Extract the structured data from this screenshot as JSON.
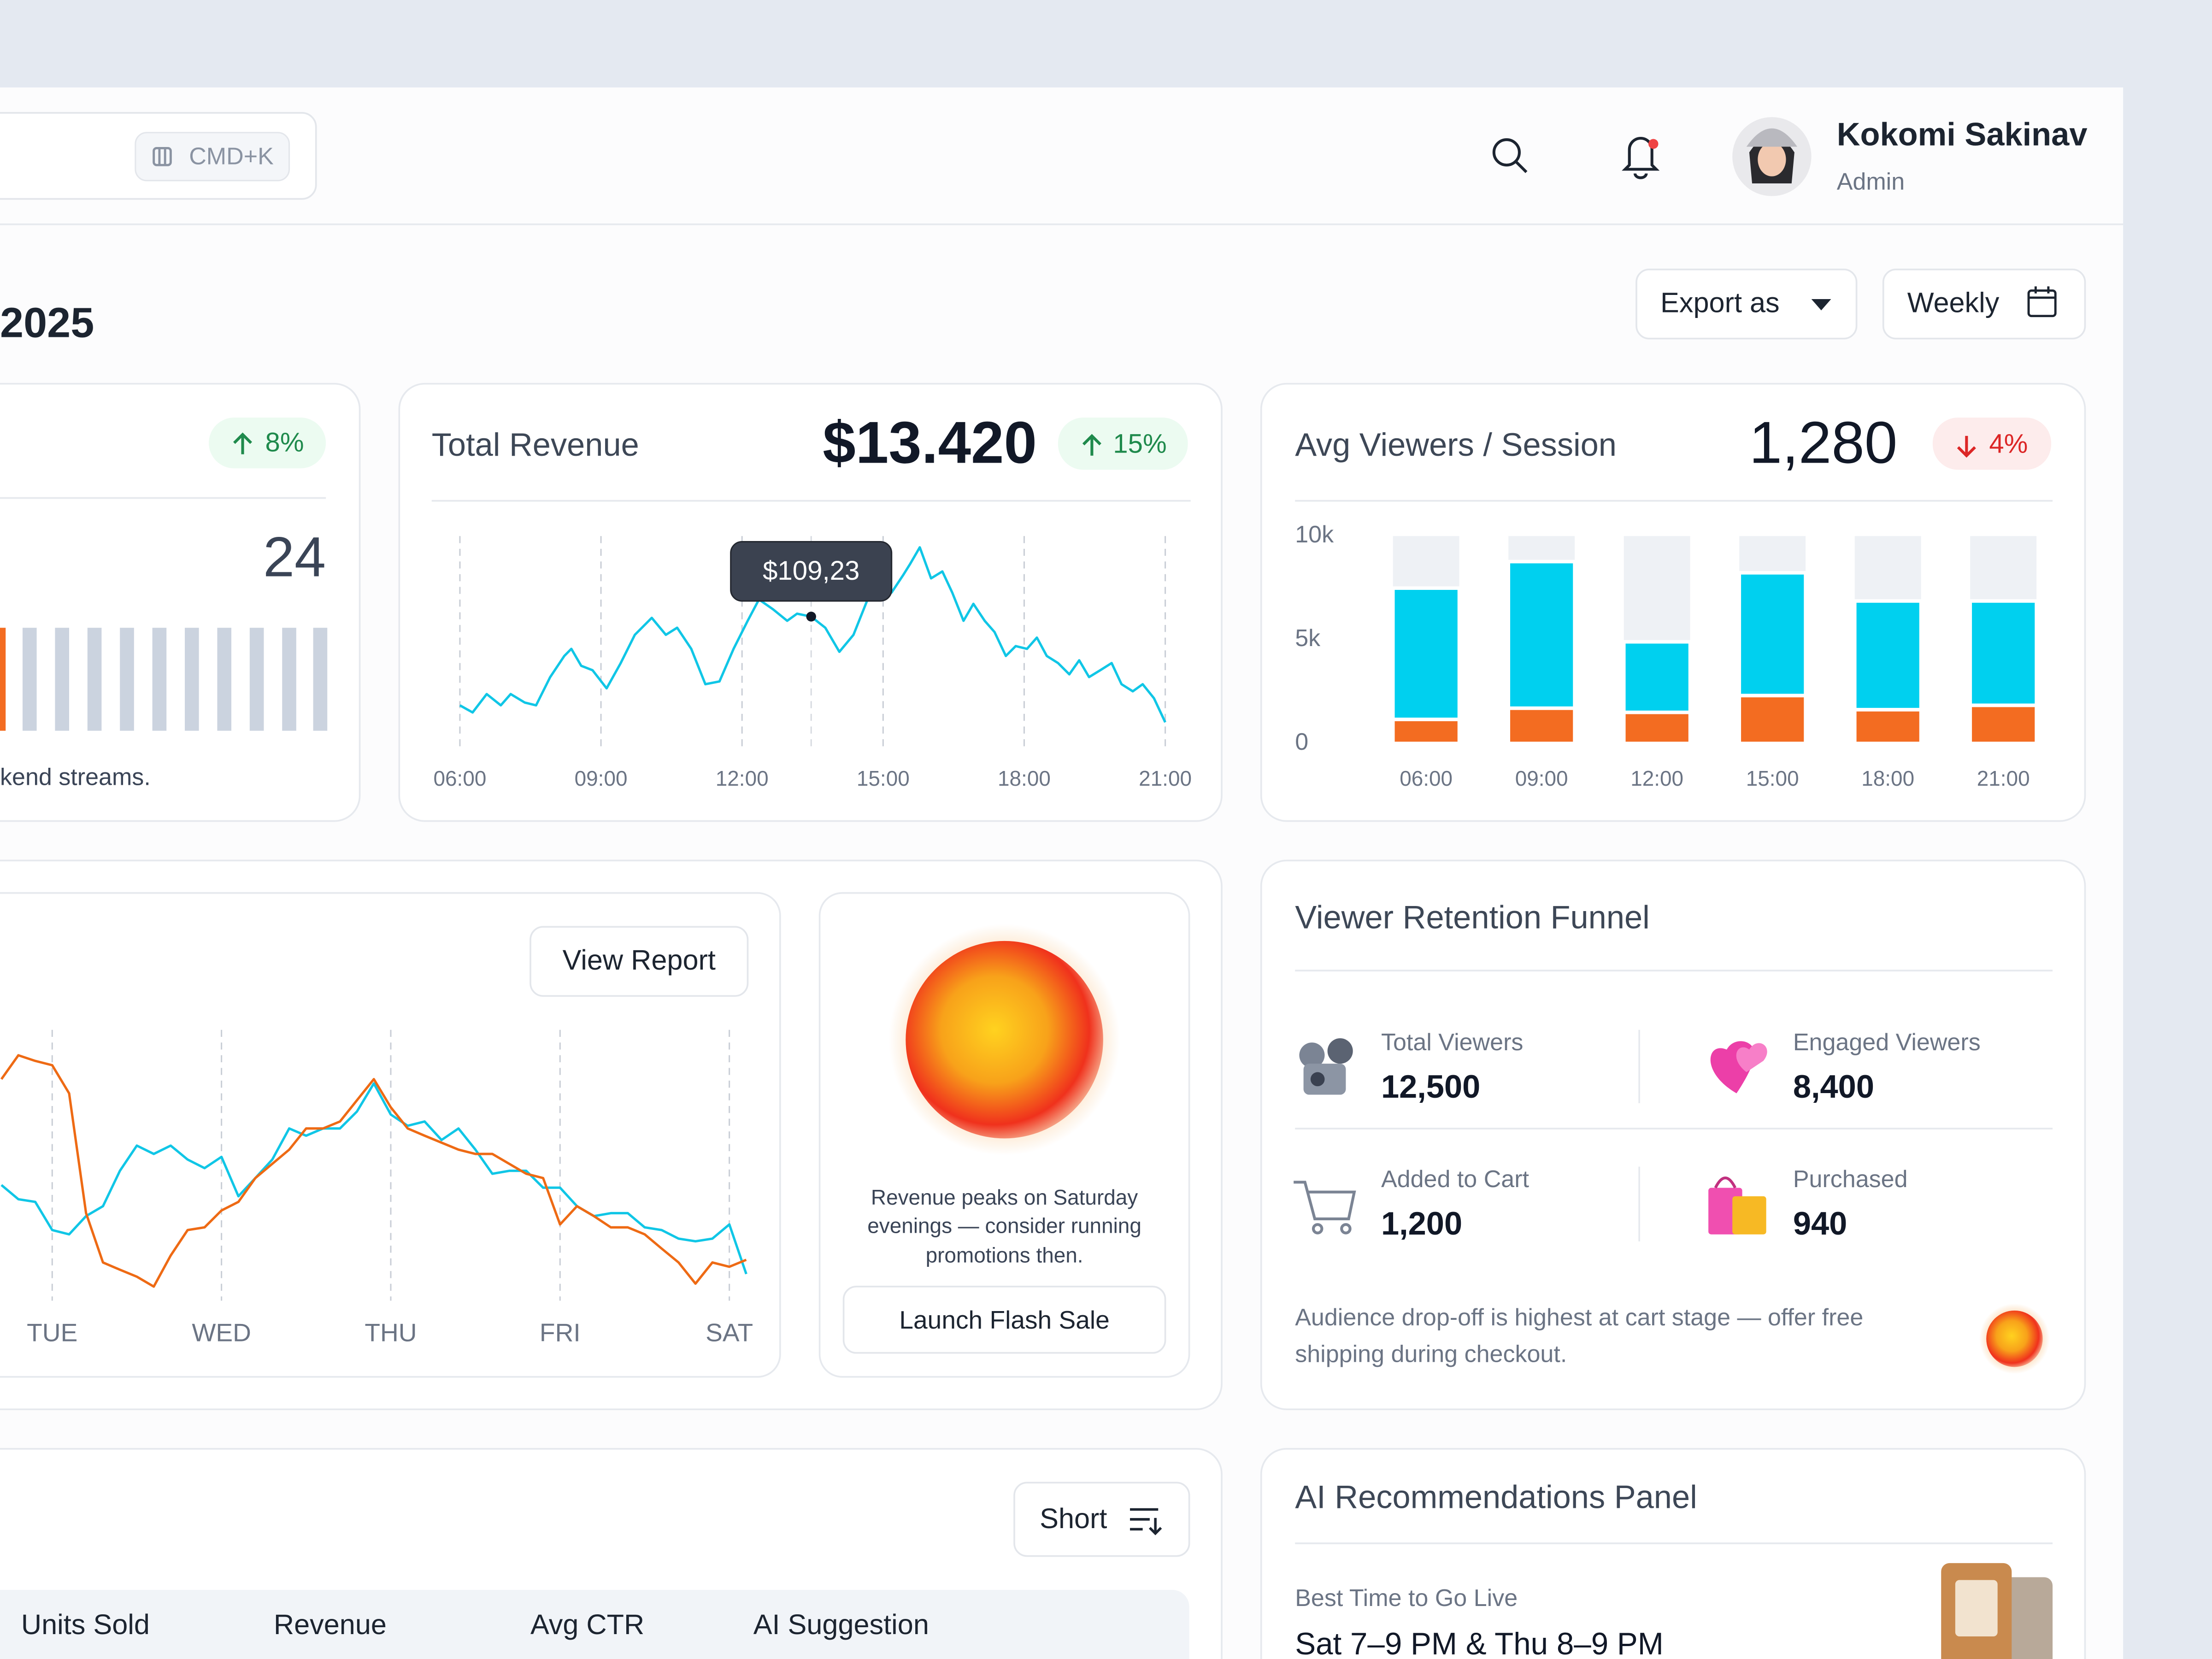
{
  "header": {
    "search_shortcut": "CMD+K",
    "user_name": "Kokomi Sakinav",
    "user_role": "Admin"
  },
  "toolbar": {
    "title_fragment": "2025",
    "export_button": "Export as",
    "period_button": "Weekly"
  },
  "streams_card": {
    "change": "8%",
    "value": "24",
    "caption": "kend streams."
  },
  "revenue_card": {
    "title": "Total Revenue",
    "value": "$13.420",
    "change": "15%",
    "chart": {
      "type": "line",
      "color": "#10c6e6",
      "x": [
        6.0,
        6.27,
        6.57,
        6.87,
        7.08,
        7.38,
        7.62,
        7.92,
        8.22,
        8.37,
        8.58,
        8.82,
        9.12,
        9.42,
        9.72,
        10.08,
        10.38,
        10.62,
        10.92,
        11.22,
        11.52,
        11.82,
        12.12,
        12.36,
        12.66,
        12.96,
        13.17,
        13.47,
        13.77,
        14.07,
        14.37,
        14.67,
        14.97,
        15.18,
        15.42,
        15.57,
        15.78,
        16.02,
        16.26,
        16.47,
        16.71,
        16.92,
        17.16,
        17.37,
        17.61,
        17.82,
        18.06,
        18.27,
        18.48,
        18.72,
        18.96,
        19.17,
        19.38,
        19.62,
        19.86,
        20.07,
        20.31,
        20.52,
        20.76,
        21.0
      ],
      "values": [
        64.3,
        60.7,
        70,
        64.3,
        70,
        65.7,
        64.3,
        78.6,
        89.3,
        92.9,
        84.3,
        82.1,
        72.9,
        85.7,
        100,
        108.6,
        100,
        103.6,
        92.9,
        75,
        76.4,
        92.9,
        107.1,
        117.9,
        112.9,
        107.1,
        110.7,
        109.23,
        103.6,
        91.4,
        100,
        117.9,
        125,
        121.4,
        130,
        135.7,
        144.3,
        128.6,
        132.1,
        121.4,
        107.1,
        115.7,
        107.1,
        101.4,
        89.3,
        94.3,
        92.9,
        98.6,
        89.3,
        85.7,
        80,
        87.1,
        78.6,
        82.1,
        85.7,
        75,
        71.4,
        75,
        67.9,
        55.7
      ],
      "xlim": [
        6,
        21
      ],
      "ylim": [
        50,
        150
      ],
      "xticks": [
        {
          "value": 6,
          "label": "06:00"
        },
        {
          "value": 9,
          "label": "09:00"
        },
        {
          "value": 12,
          "label": "12:00"
        },
        {
          "value": 15,
          "label": "15:00"
        },
        {
          "value": 18,
          "label": "18:00"
        },
        {
          "value": 21,
          "label": "21:00"
        }
      ],
      "grid": true,
      "tooltip": {
        "x": 13.47,
        "value": 109.23,
        "label": "$109,23"
      }
    }
  },
  "viewers_card": {
    "title": "Avg Viewers / Session",
    "value": "1,280",
    "change": "4%",
    "chart": {
      "type": "stacked-bar",
      "categories": [
        "06:00",
        "09:00",
        "12:00",
        "15:00",
        "18:00",
        "21:00"
      ],
      "series": [
        {
          "color": "#f36c21",
          "values": [
            1160,
            1700,
            1500,
            2310,
            1630,
            1840
          ]
        },
        {
          "color": "#00d0ef",
          "values": [
            6330,
            7070,
            3400,
            5920,
            5240,
            5030
          ]
        }
      ],
      "ylim": [
        0,
        10000
      ],
      "yticks": [
        0,
        {
          "value": 5000,
          "label": "5k"
        },
        {
          "value": 10000,
          "label": "10k"
        }
      ]
    }
  },
  "weekly_card": {
    "button": "View Report",
    "chart": {
      "type": "line",
      "x": [
        0.7,
        0.8,
        0.9,
        1.0,
        1.1,
        1.2,
        1.3,
        1.4,
        1.5,
        1.6,
        1.7,
        1.8,
        1.9,
        2.0,
        2.1,
        2.2,
        2.3,
        2.4,
        2.5,
        2.6,
        2.7,
        2.8,
        2.9,
        3.0,
        3.1,
        3.2,
        3.3,
        3.4,
        3.5,
        3.6,
        3.7,
        3.8,
        3.9,
        4.0,
        4.1,
        4.2,
        4.3,
        4.4,
        4.5,
        4.6,
        4.7,
        4.8,
        4.9,
        5.0,
        5.1
      ],
      "series": [
        {
          "color": "#10c6e6",
          "values": [
            42.1,
            36.8,
            35.8,
            25.3,
            23.7,
            30.5,
            34.2,
            47.4,
            56.8,
            53.7,
            56.8,
            51.6,
            48.4,
            52.6,
            37.9,
            44.7,
            51.6,
            63.2,
            60.5,
            63.2,
            63.2,
            69.5,
            80,
            68.4,
            64.2,
            65.8,
            58.9,
            63.2,
            55.3,
            46.3,
            47.4,
            47.4,
            41.1,
            41.1,
            34.2,
            30.5,
            31.6,
            31.6,
            26.3,
            25.3,
            22.1,
            21.1,
            22.1,
            27.4,
            8.9
          ]
        },
        {
          "color": "#ee6a14",
          "values": [
            81.6,
            90.5,
            88.4,
            86.8,
            76.3,
            31.6,
            13.2,
            10.5,
            7.9,
            4.2,
            15.8,
            25.3,
            26.3,
            32.6,
            35.8,
            44.7,
            50,
            55.3,
            63.2,
            63.2,
            65.8,
            73.7,
            81.6,
            71.1,
            63.2,
            60.5,
            57.9,
            55.3,
            53.7,
            53.7,
            50,
            46.3,
            44.7,
            27.4,
            34.2,
            30.5,
            26.3,
            26.3,
            23.7,
            18.4,
            13.2,
            5.3,
            13.2,
            11.6,
            14.2
          ]
        }
      ],
      "xlim": [
        0.7,
        5.15
      ],
      "ylim": [
        0,
        100
      ],
      "xticks": [
        {
          "value": 1,
          "label": "TUE"
        },
        {
          "value": 2,
          "label": "WED"
        },
        {
          "value": 3,
          "label": "THU"
        },
        {
          "value": 4,
          "label": "FRI"
        },
        {
          "value": 5,
          "label": "SAT"
        }
      ],
      "grid": true
    }
  },
  "insight_card": {
    "lines": [
      "Revenue peaks on Saturday",
      "evenings — consider running",
      "promotions then."
    ],
    "button": "Launch Flash Sale"
  },
  "funnel_card": {
    "title": "Viewer Retention Funnel",
    "items": [
      {
        "label": "Total Viewers",
        "value": "12,500"
      },
      {
        "label": "Engaged Viewers",
        "value": "8,400"
      },
      {
        "label": "Added to Cart",
        "value": "1,200"
      },
      {
        "label": "Purchased",
        "value": "940"
      }
    ],
    "note": [
      "Audience drop-off is highest at cart stage — offer free",
      "shipping during checkout."
    ]
  },
  "table_card": {
    "sort_button": "Short",
    "columns": [
      "Units Sold",
      "Revenue",
      "Avg CTR",
      "AI Suggestion"
    ]
  },
  "ai_card": {
    "title": "AI Recommendations Panel",
    "label": "Best Time to Go Live",
    "value": "Sat 7–9 PM & Thu 8–9 PM"
  }
}
